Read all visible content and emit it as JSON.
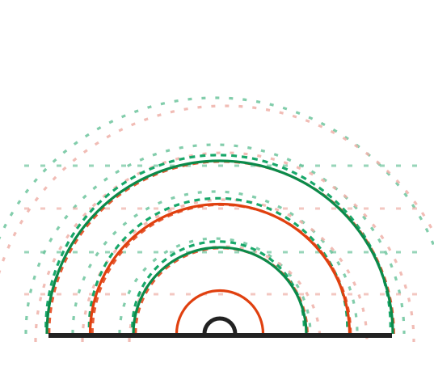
{
  "diagram": {
    "colors": {
      "green": "#0b8a4a",
      "green_dash": "#18a86a",
      "green_light": "#6cc49c",
      "orange": "#e0400f",
      "orange_dash": "#e65a33",
      "orange_light": "#efa08a",
      "pink_light": "#eeb0a8",
      "base": "#222222"
    },
    "solid_arcs": [
      {
        "color": "green",
        "order": 4
      },
      {
        "color": "orange",
        "order": 3
      },
      {
        "color": "green",
        "order": 2
      },
      {
        "color": "orange",
        "order": 1
      }
    ],
    "dashed_arcs": [
      {
        "color": "green_dash",
        "order": 1
      },
      {
        "color": "green_dash",
        "order": 2
      },
      {
        "color": "green_dash",
        "order": 3
      },
      {
        "color": "orange_dash",
        "order": 1
      },
      {
        "color": "orange_dash",
        "order": 2
      },
      {
        "color": "orange_dash",
        "order": 3
      }
    ],
    "faint_arcs": [
      {
        "color": "green_light",
        "order": 1
      },
      {
        "color": "green_light",
        "order": 2
      },
      {
        "color": "green_light",
        "order": 3
      },
      {
        "color": "green_light",
        "order": 4
      },
      {
        "color": "pink_light",
        "order": 1
      },
      {
        "color": "pink_light",
        "order": 2
      },
      {
        "color": "pink_light",
        "order": 3
      },
      {
        "color": "pink_light",
        "order": 4
      }
    ],
    "center_marker": {
      "shape": "semicircle",
      "color": "base"
    }
  }
}
